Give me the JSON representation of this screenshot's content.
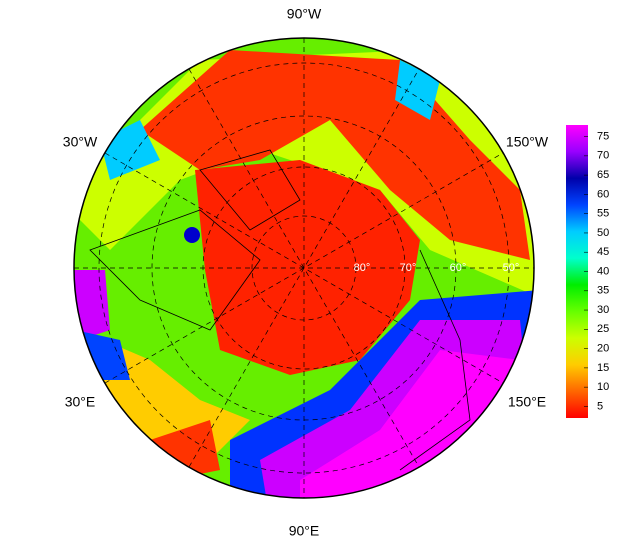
{
  "map": {
    "longitude_labels": [
      "90°W",
      "30°W",
      "150°W",
      "30°E",
      "150°E",
      "90°E"
    ],
    "latitude_labels": [
      "80°",
      "70°",
      "60°",
      "50°"
    ]
  },
  "colorbar": {
    "range": [
      2,
      78
    ],
    "ticks": [
      5,
      10,
      15,
      20,
      25,
      30,
      35,
      40,
      45,
      50,
      55,
      60,
      65,
      70,
      75
    ],
    "colors": [
      "#ff0000",
      "#ff6600",
      "#ffcc00",
      "#ccff00",
      "#66ff00",
      "#00ee00",
      "#00ffcc",
      "#00ccff",
      "#0044ff",
      "#0000aa",
      "#9900ff",
      "#ff00ff"
    ]
  }
}
